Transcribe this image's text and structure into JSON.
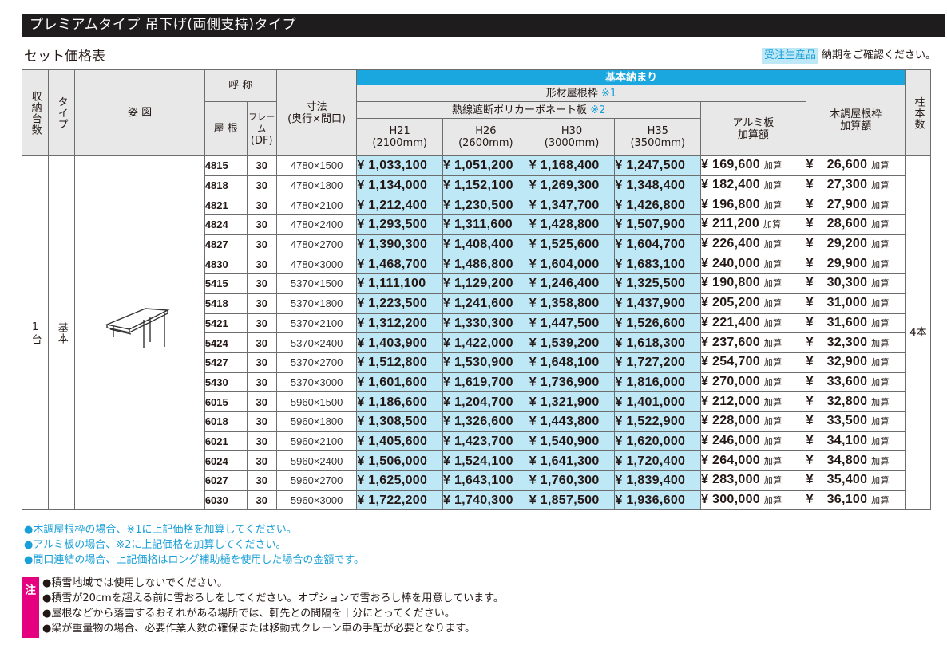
{
  "title": "プレミアムタイプ 吊下げ(両側支持)タイプ",
  "subtitle": "セット価格表",
  "notice": {
    "badge": "受注生産品",
    "text": "納期をご確認ください。"
  },
  "headers": {
    "shuno": "収納台数",
    "type": "タイプ",
    "figure": "姿 図",
    "name": "呼 称",
    "roof": "屋 根",
    "frame_a": "フレーム",
    "frame_b": "(DF)",
    "dim_a": "寸法",
    "dim_b": "(奥行×間口)",
    "kihon": "基本納まり",
    "keizai": "形材屋根枠",
    "keizai_mark": "※1",
    "poly": "熱線遮断ポリカーボネート板",
    "poly_mark": "※2",
    "h21": "H21",
    "h21_mm": "(2100mm)",
    "h26": "H26",
    "h26_mm": "(2600mm)",
    "h30": "H30",
    "h30_mm": "(3000mm)",
    "h35": "H35",
    "h35_mm": "(3500mm)",
    "alumi_a": "アルミ板",
    "alumi_b": "加算額",
    "wood_a": "木調屋根枠",
    "wood_b": "加算額",
    "posts": "柱本数"
  },
  "body": {
    "shuno_val": "1台",
    "type_val": "基本",
    "posts_val": "4本",
    "yen": "¥",
    "kasan": "加算"
  },
  "rows": [
    {
      "code": "4815",
      "df": "30",
      "dim": "4780×1500",
      "h21": "1,033,100",
      "h26": "1,051,200",
      "h30": "1,168,400",
      "h35": "1,247,500",
      "alumi": "169,600",
      "wood": "26,600"
    },
    {
      "code": "4818",
      "df": "30",
      "dim": "4780×1800",
      "h21": "1,134,000",
      "h26": "1,152,100",
      "h30": "1,269,300",
      "h35": "1,348,400",
      "alumi": "182,400",
      "wood": "27,300"
    },
    {
      "code": "4821",
      "df": "30",
      "dim": "4780×2100",
      "h21": "1,212,400",
      "h26": "1,230,500",
      "h30": "1,347,700",
      "h35": "1,426,800",
      "alumi": "196,800",
      "wood": "27,900"
    },
    {
      "code": "4824",
      "df": "30",
      "dim": "4780×2400",
      "h21": "1,293,500",
      "h26": "1,311,600",
      "h30": "1,428,800",
      "h35": "1,507,900",
      "alumi": "211,200",
      "wood": "28,600"
    },
    {
      "code": "4827",
      "df": "30",
      "dim": "4780×2700",
      "h21": "1,390,300",
      "h26": "1,408,400",
      "h30": "1,525,600",
      "h35": "1,604,700",
      "alumi": "226,400",
      "wood": "29,200"
    },
    {
      "code": "4830",
      "df": "30",
      "dim": "4780×3000",
      "h21": "1,468,700",
      "h26": "1,486,800",
      "h30": "1,604,000",
      "h35": "1,683,100",
      "alumi": "240,000",
      "wood": "29,900"
    },
    {
      "code": "5415",
      "df": "30",
      "dim": "5370×1500",
      "h21": "1,111,100",
      "h26": "1,129,200",
      "h30": "1,246,400",
      "h35": "1,325,500",
      "alumi": "190,800",
      "wood": "30,300"
    },
    {
      "code": "5418",
      "df": "30",
      "dim": "5370×1800",
      "h21": "1,223,500",
      "h26": "1,241,600",
      "h30": "1,358,800",
      "h35": "1,437,900",
      "alumi": "205,200",
      "wood": "31,000"
    },
    {
      "code": "5421",
      "df": "30",
      "dim": "5370×2100",
      "h21": "1,312,200",
      "h26": "1,330,300",
      "h30": "1,447,500",
      "h35": "1,526,600",
      "alumi": "221,400",
      "wood": "31,600"
    },
    {
      "code": "5424",
      "df": "30",
      "dim": "5370×2400",
      "h21": "1,403,900",
      "h26": "1,422,000",
      "h30": "1,539,200",
      "h35": "1,618,300",
      "alumi": "237,600",
      "wood": "32,300"
    },
    {
      "code": "5427",
      "df": "30",
      "dim": "5370×2700",
      "h21": "1,512,800",
      "h26": "1,530,900",
      "h30": "1,648,100",
      "h35": "1,727,200",
      "alumi": "254,700",
      "wood": "32,900"
    },
    {
      "code": "5430",
      "df": "30",
      "dim": "5370×3000",
      "h21": "1,601,600",
      "h26": "1,619,700",
      "h30": "1,736,900",
      "h35": "1,816,000",
      "alumi": "270,000",
      "wood": "33,600"
    },
    {
      "code": "6015",
      "df": "30",
      "dim": "5960×1500",
      "h21": "1,186,600",
      "h26": "1,204,700",
      "h30": "1,321,900",
      "h35": "1,401,000",
      "alumi": "212,000",
      "wood": "32,800"
    },
    {
      "code": "6018",
      "df": "30",
      "dim": "5960×1800",
      "h21": "1,308,500",
      "h26": "1,326,600",
      "h30": "1,443,800",
      "h35": "1,522,900",
      "alumi": "228,000",
      "wood": "33,500"
    },
    {
      "code": "6021",
      "df": "30",
      "dim": "5960×2100",
      "h21": "1,405,600",
      "h26": "1,423,700",
      "h30": "1,540,900",
      "h35": "1,620,000",
      "alumi": "246,000",
      "wood": "34,100"
    },
    {
      "code": "6024",
      "df": "30",
      "dim": "5960×2400",
      "h21": "1,506,000",
      "h26": "1,524,100",
      "h30": "1,641,300",
      "h35": "1,720,400",
      "alumi": "264,000",
      "wood": "34,800"
    },
    {
      "code": "6027",
      "df": "30",
      "dim": "5960×2700",
      "h21": "1,625,000",
      "h26": "1,643,100",
      "h30": "1,760,300",
      "h35": "1,839,400",
      "alumi": "283,000",
      "wood": "35,400"
    },
    {
      "code": "6030",
      "df": "30",
      "dim": "5960×3000",
      "h21": "1,722,200",
      "h26": "1,740,300",
      "h30": "1,857,500",
      "h35": "1,936,600",
      "alumi": "300,000",
      "wood": "36,100"
    }
  ],
  "bullets": [
    "●木調屋根枠の場合、※1に上記価格を加算してください。",
    "●アルミ板の場合、※2に上記価格を加算してください。",
    "●間口連結の場合、上記価格はロング補助樋を使用した場合の金額です。"
  ],
  "notes_label": "注",
  "notes": [
    "●積雪地域では使用しないでください。",
    "●積雪が20cmを超える前に雪おろしをしてください。オプションで雪おろし棒を用意しています。",
    "●屋根などから落雪するおそれがある場所では、軒先との間隔を十分にとってください。",
    "●梁が重量物の場合、必要作業人数の確保または移動式クレーン車の手配が必要となります。"
  ]
}
